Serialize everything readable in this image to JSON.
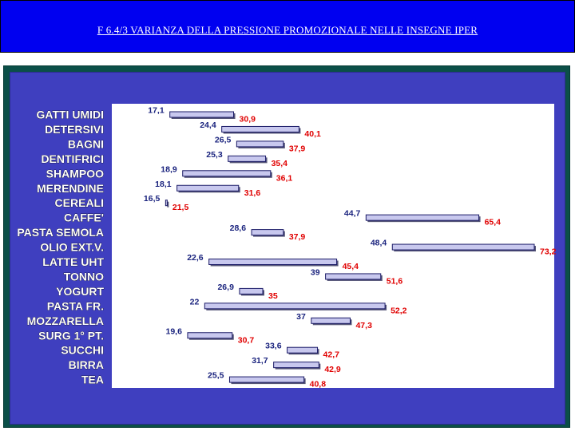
{
  "title": "F 6.4/3 VARIANZA DELLA PRESSIONE PROMOZIONALE NELLE INSEGNE IPER",
  "colors": {
    "header_bg": "#0000f0",
    "frame": "#0b4f48",
    "panel": "#3f3fbf",
    "plot_bg": "#ffffff",
    "bar_fill": "#c8c8ee",
    "min_label": "#1a237e",
    "max_label": "#e00000"
  },
  "chart_data": {
    "type": "bar",
    "orientation": "horizontal-range",
    "categories": [
      "GATTI UMIDI",
      "DETERSIVI",
      "BAGNI",
      "DENTIFRICI",
      "SHAMPOO",
      "MERENDINE",
      "CEREALI",
      "CAFFE'",
      "PASTA SEMOLA",
      "OLIO EXT.V.",
      "LATTE UHT",
      "TONNO",
      "YOGURT",
      "PASTA FR.",
      "MOZZARELLA",
      "SURG 1° PT.",
      "SUCCHI",
      "BIRRA",
      "TEA"
    ],
    "series": [
      {
        "values": [
          17.1,
          24.4,
          26.5,
          25.3,
          18.9,
          18.1,
          16.5,
          44.7,
          28.6,
          48.4,
          22.6,
          39,
          26.9,
          22,
          37,
          19.6,
          33.6,
          31.7,
          25.5
        ]
      },
      {
        "values": [
          30.9,
          40.1,
          37.9,
          35.4,
          36.1,
          31.6,
          21.5,
          65.4,
          37.9,
          73.2,
          45.4,
          51.6,
          35,
          52.2,
          47.3,
          30.7,
          42.7,
          42.9,
          40.8
        ]
      }
    ],
    "min_labels": [
      "17,1",
      "24,4",
      "26,5",
      "25,3",
      "18,9",
      "18,1",
      "16,5",
      "44,7",
      "28,6",
      "48,4",
      "22,6",
      "39",
      "26,9",
      "22",
      "37",
      "19,6",
      "33,6",
      "31,7",
      "25,5"
    ],
    "max_labels": [
      "30,9",
      "40,1",
      "37,9",
      "35,4",
      "36,1",
      "31,6",
      "21,5",
      "65,4",
      "37,9",
      "73,2",
      "45,4",
      "51,6",
      "35",
      "52,2",
      "47,3",
      "30,7",
      "42,7",
      "42,9",
      "40,8"
    ],
    "xlim": [
      0,
      75
    ],
    "grid": false,
    "legend": "none"
  }
}
